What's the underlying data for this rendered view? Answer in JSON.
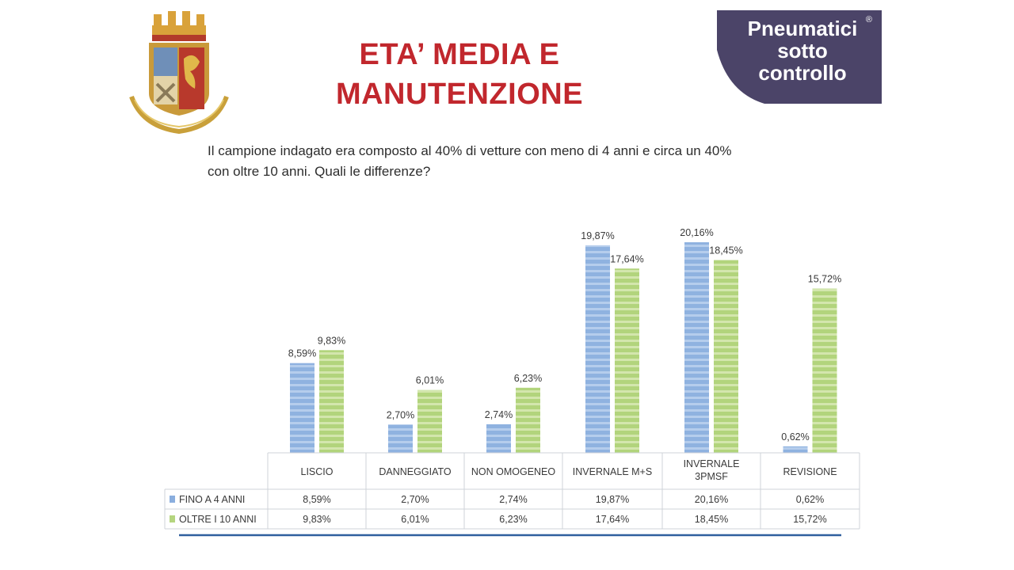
{
  "header": {
    "title_line1": "ETA’ MEDIA E",
    "title_line2": "MANUTENZIONE",
    "subtitle_line1": "Il campione indagato era composto al 40% di vetture con meno di 4 anni e circa un 40%",
    "subtitle_line2": "con oltre 10 anni. Quali le differenze?"
  },
  "brand": {
    "line1": "Pneumatici",
    "line2": "sotto",
    "line3": "controllo",
    "reg_mark": "®",
    "bg_color": "#4b4468"
  },
  "colors": {
    "title": "#c1272d",
    "series1": "#8aaede",
    "series2": "#b5d57f"
  },
  "chart_data": {
    "type": "bar",
    "categories": [
      "LISCIO",
      "DANNEGGIATO",
      "NON OMOGENEO",
      "INVERNALE M+S",
      "INVERNALE 3PMSF",
      "REVISIONE"
    ],
    "category_lines": [
      [
        "LISCIO"
      ],
      [
        "DANNEGGIATO"
      ],
      [
        "NON OMOGENEO"
      ],
      [
        "INVERNALE M+S"
      ],
      [
        "INVERNALE",
        "3PMSF"
      ],
      [
        "REVISIONE"
      ]
    ],
    "series": [
      {
        "name": "FINO A 4 ANNI",
        "values": [
          8.59,
          2.7,
          2.74,
          19.87,
          20.16,
          0.62
        ],
        "labels": [
          "8,59%",
          "2,70%",
          "2,74%",
          "19,87%",
          "20,16%",
          "0,62%"
        ]
      },
      {
        "name": "OLTRE I 10 ANNI",
        "values": [
          9.83,
          6.01,
          6.23,
          17.64,
          18.45,
          15.72
        ],
        "labels": [
          "9,83%",
          "6,01%",
          "6,23%",
          "17,64%",
          "18,45%",
          "15,72%"
        ]
      }
    ],
    "ylim": [
      0,
      20.16
    ],
    "grid": false,
    "legend": "data-table-left"
  }
}
